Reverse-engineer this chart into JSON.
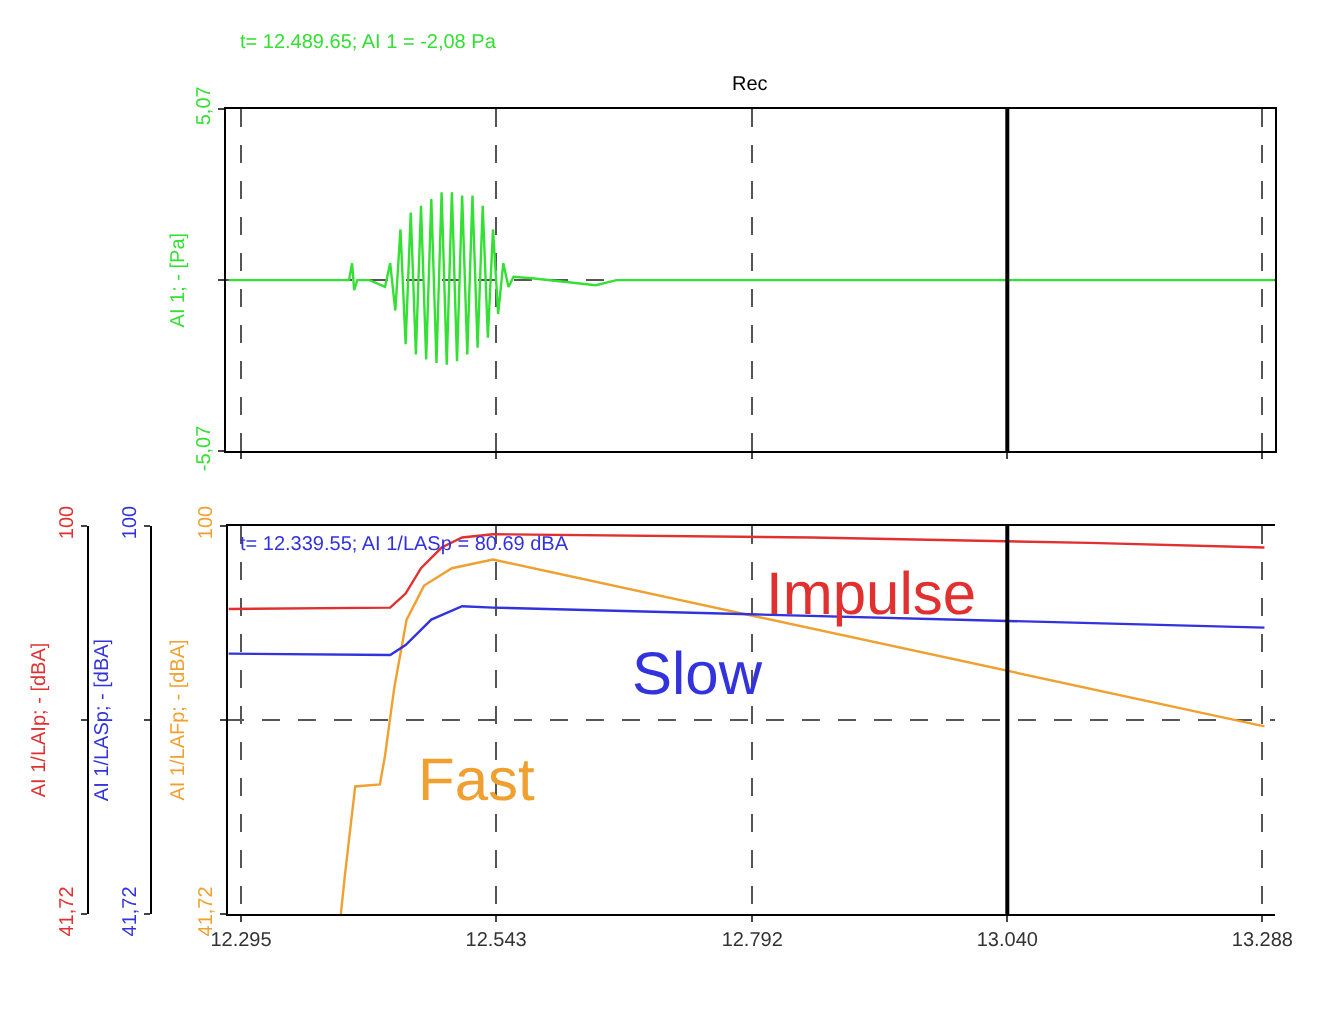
{
  "chart_data": [
    {
      "type": "line",
      "ylabel": "AI 1; - [Pa]",
      "annotations": [
        "t= 12.489.65; AI 1 = -2,08 Pa",
        "Rec"
      ],
      "xlim": [
        12280,
        13300
      ],
      "xticks": [
        {
          "value": 12295,
          "label": null
        },
        {
          "value": 12543,
          "label": null
        },
        {
          "value": 12792,
          "label": null
        },
        {
          "value": 13040,
          "label": null
        },
        {
          "value": 13288,
          "label": null
        }
      ],
      "ylim": [
        -5.07,
        5.07
      ],
      "yticks": [
        {
          "value": -5.07,
          "label": "-5,07"
        },
        {
          "value": 0,
          "label": null
        },
        {
          "value": 5.07,
          "label": "5,07"
        }
      ],
      "tick_labels": "y",
      "grid": true,
      "ref_lines": [
        {
          "axis": "x",
          "value": 13040,
          "color": "#000000"
        }
      ],
      "series": [
        {
          "color": "#33e033",
          "x": [
            12283,
            12400,
            12403,
            12405,
            12408,
            12420,
            12435,
            12440,
            12445,
            12450,
            12455,
            12460,
            12465,
            12470,
            12475,
            12480,
            12485,
            12490,
            12495,
            12500,
            12505,
            12510,
            12515,
            12520,
            12525,
            12530,
            12535,
            12540,
            12545,
            12550,
            12555,
            12560,
            12580,
            12640,
            12660,
            12700,
            13300
          ],
          "values": [
            0,
            0,
            0.5,
            -0.3,
            0,
            0,
            -0.2,
            0.5,
            -0.9,
            1.5,
            -1.9,
            2.0,
            -2.2,
            2.2,
            -2.35,
            2.4,
            -2.45,
            2.6,
            -2.5,
            2.6,
            -2.4,
            2.5,
            -2.2,
            2.5,
            -2.0,
            2.2,
            -1.7,
            1.5,
            -1.0,
            0.5,
            -0.2,
            0.1,
            0.05,
            -0.15,
            0,
            0,
            0
          ]
        }
      ]
    },
    {
      "type": "line",
      "ylabel": "AI 1/LAFp; - [dBA]",
      "y2label": "AI 1/LASp; - [dBA]",
      "y3label": "AI 1/LAIp; - [dBA]",
      "annotations": [
        "t= 12.339.55; AI 1/LASp = 80.69 dBA"
      ],
      "xlim": [
        12280,
        13300
      ],
      "xticks": [
        {
          "value": 12295,
          "label": "12.295"
        },
        {
          "value": 12543,
          "label": "12.543"
        },
        {
          "value": 12792,
          "label": "12.792"
        },
        {
          "value": 13040,
          "label": "13.040"
        },
        {
          "value": 13288,
          "label": "13.288"
        }
      ],
      "ylim": [
        41.72,
        100
      ],
      "yticks": [
        {
          "value": 41.72,
          "label": "41,72"
        },
        {
          "value": 70.86,
          "label": null
        },
        100
      ],
      "y2lim": [
        41.72,
        100
      ],
      "y2ticks": [
        {
          "value": 41.72,
          "label": "41,72"
        },
        {
          "value": 70.86,
          "label": null
        },
        100
      ],
      "y3lim": [
        41.72,
        100
      ],
      "y3ticks": [
        {
          "value": 41.72,
          "label": "41,72"
        },
        {
          "value": 70.86,
          "label": null
        },
        100
      ],
      "grid": true,
      "ref_lines": [
        {
          "axis": "x",
          "value": 13040,
          "color": "#000000"
        }
      ],
      "series": [
        {
          "name": "Impulse",
          "color": "#e03030",
          "axis": "y3",
          "x": [
            12283,
            12440,
            12455,
            12470,
            12490,
            12510,
            12540,
            12850,
            13120,
            13290
          ],
          "values": [
            87.5,
            87.7,
            89.8,
            93.6,
            96.7,
            98.2,
            98.7,
            98.2,
            97.4,
            96.7
          ]
        },
        {
          "name": "Slow",
          "color": "#3333dd",
          "axis": "y2",
          "x": [
            12283,
            12440,
            12455,
            12480,
            12510,
            12540,
            12790,
            13040,
            13290
          ],
          "values": [
            80.8,
            80.6,
            82.1,
            85.9,
            87.9,
            87.7,
            86.7,
            85.7,
            84.7
          ]
        },
        {
          "name": "Fast",
          "color": "#f0a030",
          "x": [
            12392,
            12396,
            12406,
            12430,
            12435,
            12444,
            12456,
            12473,
            12500,
            12540,
            13290
          ],
          "values": [
            41.72,
            47.6,
            60.9,
            61.2,
            65.5,
            75.7,
            85.9,
            91.0,
            93.6,
            94.9,
            69.9
          ]
        }
      ]
    }
  ]
}
